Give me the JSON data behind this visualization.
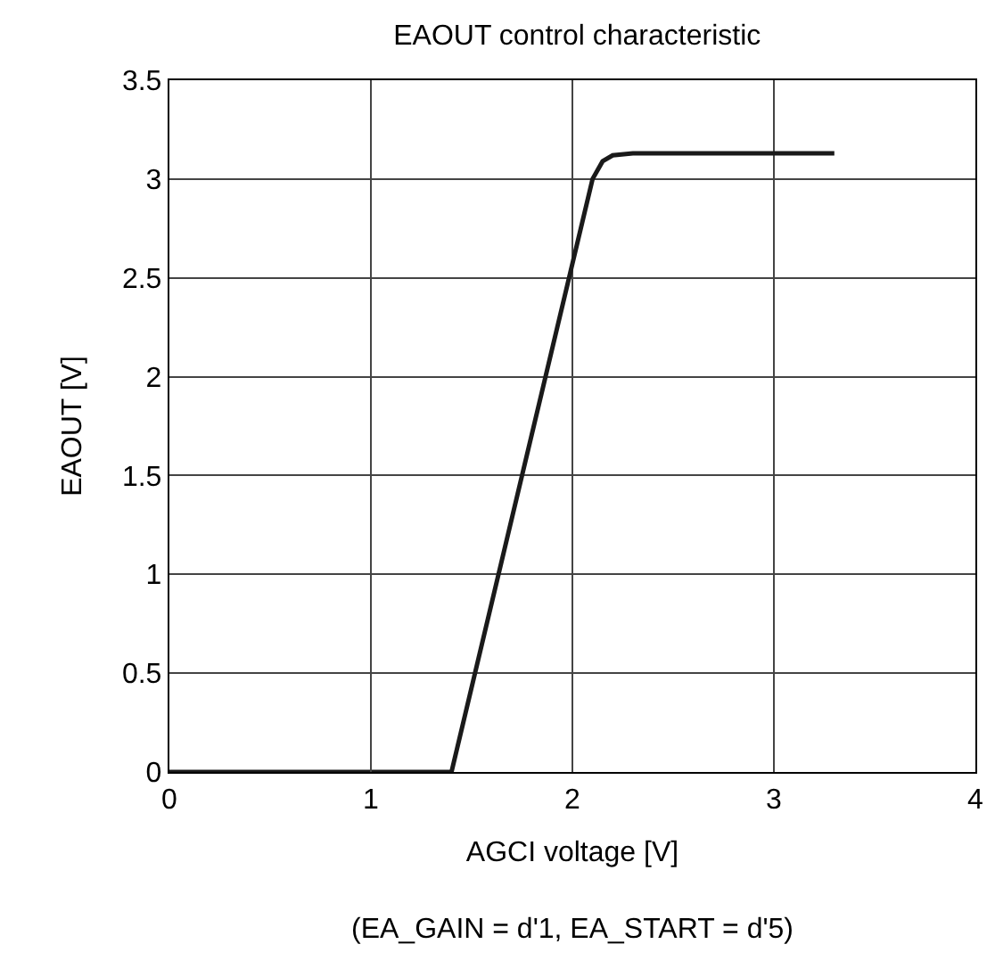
{
  "chart_data": {
    "type": "line",
    "title": "EAOUT control characteristic",
    "xlabel": "AGCI voltage [V]",
    "ylabel": "EAOUT [V]",
    "annotations": [
      "(EA_GAIN = d'1, EA_START = d'5)"
    ],
    "x": [
      0,
      1.4,
      2.1,
      2.15,
      2.2,
      2.3,
      3.3
    ],
    "series": [
      {
        "color": "#1a1a1a",
        "values": [
          0,
          0,
          3.0,
          3.09,
          3.12,
          3.13,
          3.13
        ]
      }
    ],
    "xlim": [
      0,
      4
    ],
    "xticks": [
      0,
      1,
      2,
      3,
      4
    ],
    "ylim": [
      0,
      3.5
    ],
    "yticks": [
      0,
      0.5,
      1,
      1.5,
      2,
      2.5,
      3,
      3.5
    ],
    "grid": true,
    "legend": false,
    "marker": "none",
    "line_style": "solid"
  }
}
